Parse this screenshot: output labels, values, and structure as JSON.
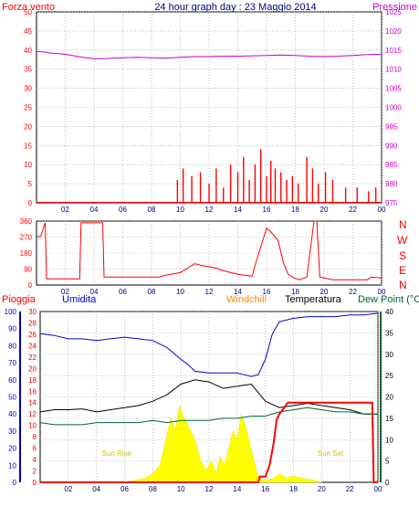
{
  "chart_data": [
    {
      "type": "line",
      "title": "24 hour graph day : 23 Maggio 2014",
      "left_axis_title": "Forza vento",
      "right_axis_title": "Pressione",
      "x_ticks": [
        "02",
        "04",
        "06",
        "08",
        "10",
        "12",
        "14",
        "16",
        "18",
        "20",
        "22",
        "00"
      ],
      "left_ticks": [
        0,
        5,
        10,
        15,
        20,
        25,
        30,
        35,
        40,
        45,
        50
      ],
      "right_ticks": [
        975,
        980,
        985,
        990,
        995,
        1000,
        1005,
        1010,
        1015,
        1020,
        1025
      ],
      "left_range": [
        0,
        50
      ],
      "right_range": [
        975,
        1025
      ],
      "grid": true,
      "series": [
        {
          "name": "Pressione",
          "axis": "right",
          "color": "#cc00cc",
          "x": [
            0,
            0.5,
            1,
            2,
            3,
            4,
            5,
            6,
            7,
            8,
            9,
            10,
            11,
            12,
            13,
            14,
            15,
            16,
            17,
            18,
            19,
            20,
            21,
            22,
            23,
            24
          ],
          "values": [
            1014.6,
            1014.5,
            1014.2,
            1013.9,
            1013.2,
            1012.7,
            1012.8,
            1013.0,
            1013.1,
            1013.0,
            1012.9,
            1013.1,
            1013.3,
            1013.3,
            1013.4,
            1013.4,
            1013.5,
            1013.6,
            1013.7,
            1013.6,
            1013.4,
            1013.3,
            1013.4,
            1013.6,
            1013.8,
            1013.9
          ]
        },
        {
          "name": "Forza vento",
          "axis": "left",
          "color": "#ff0000",
          "x": [
            9.8,
            10.2,
            10.8,
            11.4,
            12.0,
            12.5,
            13.0,
            13.5,
            14.0,
            14.4,
            14.8,
            15.2,
            15.6,
            16.0,
            16.3,
            16.6,
            17.0,
            17.4,
            17.8,
            18.2,
            18.8,
            19.2,
            19.6,
            20.1,
            20.6,
            21.5,
            22.3,
            23.1,
            23.6
          ],
          "values": [
            6,
            9,
            7,
            8,
            5,
            9,
            4,
            10,
            8,
            12,
            6,
            10,
            14,
            7,
            11,
            9,
            8,
            6,
            7,
            5,
            12,
            9,
            5,
            8,
            6,
            4,
            4,
            3,
            4
          ]
        }
      ]
    },
    {
      "type": "line",
      "right_labels": [
        "N",
        "W",
        "S",
        "E",
        "N"
      ],
      "x_ticks": [
        "02",
        "04",
        "06",
        "08",
        "10",
        "12",
        "14",
        "16",
        "18",
        "20",
        "22",
        "00"
      ],
      "left_ticks": [
        0,
        90,
        180,
        270,
        360
      ],
      "range": [
        0,
        360
      ],
      "series": [
        {
          "name": "direction",
          "color": "#ff0000",
          "x": [
            0,
            0.3,
            0.6,
            0.7,
            3.0,
            3.1,
            4.6,
            4.7,
            8.5,
            9.0,
            10.0,
            11.0,
            11.5,
            12.5,
            13.0,
            14.0,
            15.0,
            15.2,
            16.0,
            16.3,
            16.8,
            17.2,
            17.5,
            17.9,
            18.3,
            18.8,
            19.3,
            19.5,
            19.7,
            20.6,
            22.0,
            23.0,
            23.3,
            24.0
          ],
          "values": [
            270,
            275,
            350,
            35,
            35,
            350,
            350,
            45,
            45,
            55,
            70,
            120,
            110,
            95,
            80,
            60,
            50,
            110,
            320,
            300,
            250,
            120,
            60,
            40,
            30,
            45,
            360,
            360,
            45,
            30,
            30,
            30,
            45,
            40
          ]
        }
      ]
    },
    {
      "type": "line",
      "legend": [
        "Pioggia",
        "Umidita",
        "Windchill",
        "Temperatura",
        "Dew Point (°C"
      ],
      "legend_colors": [
        "#ff0000",
        "#0000cc",
        "#ff8800",
        "#000000",
        "#006633"
      ],
      "x_ticks": [
        "02",
        "04",
        "06",
        "08",
        "10",
        "12",
        "14",
        "16",
        "18",
        "20",
        "22",
        "00"
      ],
      "humidity_ticks": [
        0,
        10,
        20,
        30,
        40,
        50,
        60,
        70,
        80,
        90,
        100
      ],
      "left_ticks": [
        0,
        2,
        4,
        6,
        8,
        10,
        12,
        14,
        16,
        18,
        20,
        22,
        24,
        26,
        28,
        30
      ],
      "right_ticks": [
        0,
        5,
        10,
        15,
        20,
        25,
        30,
        35,
        40
      ],
      "annotations": [
        "Sun Rise",
        "Sun Set"
      ],
      "series": [
        {
          "name": "Umidita",
          "axis": "humidity",
          "color": "#0000cc",
          "x": [
            0,
            1,
            2,
            3,
            4,
            5,
            6,
            7,
            8,
            9,
            10,
            10.5,
            11,
            12,
            13,
            14,
            14.5,
            15,
            15.5,
            16,
            16.5,
            17,
            18,
            19,
            20,
            21,
            22,
            23,
            24
          ],
          "values": [
            87,
            86,
            84,
            84,
            83,
            84,
            85,
            84,
            83,
            79,
            72,
            69,
            65,
            64,
            64,
            64,
            63,
            62,
            63,
            72,
            87,
            94,
            96,
            97,
            97,
            97,
            98,
            98,
            99
          ]
        },
        {
          "name": "Temperatura",
          "axis": "temp",
          "color": "#000000",
          "x": [
            0,
            1,
            2,
            3,
            4,
            5,
            6,
            7,
            8,
            9,
            10,
            11,
            12,
            13,
            14,
            15,
            16,
            17,
            18,
            19,
            20,
            21,
            22,
            23,
            24
          ],
          "values": [
            16.5,
            17,
            17,
            17.2,
            16.5,
            17,
            17.5,
            18,
            19,
            20.5,
            23,
            24,
            23.5,
            22,
            22.5,
            23,
            19,
            17.5,
            18,
            18.5,
            18,
            17.5,
            17,
            16,
            16
          ]
        },
        {
          "name": "Dew Point",
          "axis": "temp",
          "color": "#006633",
          "x": [
            0,
            1,
            2,
            3,
            4,
            5,
            6,
            7,
            8,
            9,
            10,
            11,
            12,
            13,
            14,
            15,
            16,
            17,
            18,
            19,
            20,
            21,
            22,
            23,
            24
          ],
          "values": [
            14,
            13.5,
            13.5,
            13.5,
            14,
            14,
            14,
            14,
            14.5,
            14,
            14.5,
            14.5,
            14.5,
            15,
            15,
            15.5,
            15.5,
            16.5,
            17,
            17.5,
            17,
            16.5,
            16.5,
            16,
            16
          ]
        },
        {
          "name": "Pioggia",
          "axis": "left",
          "color": "#ff0000",
          "x": [
            0,
            15.5,
            15.6,
            16.0,
            16.3,
            16.6,
            16.8,
            17.0,
            17.3,
            17.6,
            18,
            19,
            20,
            21,
            22,
            23,
            23.6,
            23.7,
            24
          ],
          "values": [
            0,
            0,
            1,
            1,
            3,
            7,
            11,
            12,
            13,
            14,
            14,
            14,
            14,
            14,
            14,
            14,
            14,
            0,
            0
          ]
        },
        {
          "name": "solar",
          "axis": "temp",
          "color": "#ffff00",
          "x": [
            5.5,
            6.5,
            7.5,
            8.0,
            8.5,
            8.8,
            9.0,
            9.3,
            9.6,
            9.9,
            10.1,
            10.4,
            10.7,
            11.0,
            11.4,
            11.8,
            12.2,
            12.5,
            12.8,
            13.1,
            13.4,
            13.7,
            14.0,
            14.3,
            14.6,
            14.9,
            15.2,
            15.5,
            16.0,
            16.5,
            17.0,
            17.5,
            18.0,
            18.5,
            19.0,
            19.5,
            20.0
          ],
          "values": [
            0,
            0.3,
            1,
            2,
            4,
            8,
            11,
            15,
            12,
            18,
            16,
            14,
            12,
            10,
            5,
            3,
            5,
            2,
            6,
            4,
            8,
            12,
            10,
            16,
            13,
            9,
            5,
            1,
            0.5,
            0.8,
            2,
            1,
            1.5,
            1,
            0.8,
            0.5,
            0
          ]
        }
      ]
    }
  ]
}
